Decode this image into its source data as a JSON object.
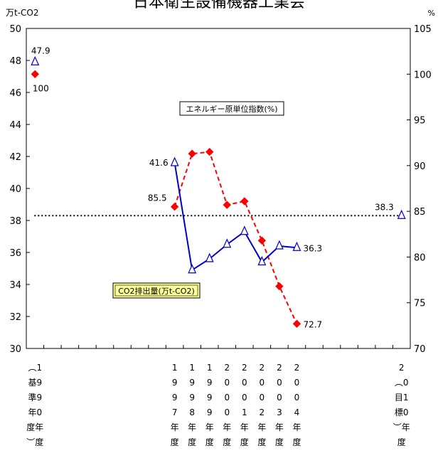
{
  "chart_data": {
    "type": "line",
    "title": "日本衛生設備機器工業会",
    "y_left_unit": "万t-CO2",
    "y_right_unit": "%",
    "y_left_range": [
      30,
      50
    ],
    "y_left_ticks": [
      "30",
      "32",
      "34",
      "36",
      "38",
      "40",
      "42",
      "44",
      "46",
      "48",
      "50"
    ],
    "y_right_range": [
      70,
      105
    ],
    "y_right_ticks": [
      "70",
      "75",
      "80",
      "85",
      "90",
      "95",
      "100",
      "105"
    ],
    "x_labels": [
      {
        "slot": 0,
        "lines": [
          "︵1",
          "基9",
          "準9",
          "年0",
          "度年",
          "︶度"
        ]
      },
      {
        "slot": 8,
        "lines": [
          "1",
          "9",
          "9",
          "7",
          "年",
          "度"
        ]
      },
      {
        "slot": 9,
        "lines": [
          "1",
          "9",
          "9",
          "8",
          "年",
          "度"
        ]
      },
      {
        "slot": 10,
        "lines": [
          "1",
          "9",
          "9",
          "9",
          "年",
          "度"
        ]
      },
      {
        "slot": 11,
        "lines": [
          "2",
          "0",
          "0",
          "0",
          "年",
          "度"
        ]
      },
      {
        "slot": 12,
        "lines": [
          "2",
          "0",
          "0",
          "1",
          "年",
          "度"
        ]
      },
      {
        "slot": 13,
        "lines": [
          "2",
          "0",
          "0",
          "2",
          "年",
          "度"
        ]
      },
      {
        "slot": 14,
        "lines": [
          "2",
          "0",
          "0",
          "3",
          "年",
          "度"
        ]
      },
      {
        "slot": 15,
        "lines": [
          "2",
          "0",
          "0",
          "4",
          "年",
          "度"
        ]
      },
      {
        "slot": 21,
        "lines": [
          "2",
          "︵0",
          "目1",
          "標0",
          "︶年",
          "度"
        ]
      }
    ],
    "slot_count": 22,
    "series": [
      {
        "name": "CO2排出量(万t-CO2)",
        "axis": "left",
        "color": "#0000cc",
        "points": [
          {
            "slot": 0,
            "value": 47.9
          },
          {
            "slot": 8,
            "value": 41.6
          },
          {
            "slot": 9,
            "value": 34.9
          },
          {
            "slot": 10,
            "value": 35.6
          },
          {
            "slot": 11,
            "value": 36.5
          },
          {
            "slot": 12,
            "value": 37.3
          },
          {
            "slot": 13,
            "value": 35.4
          },
          {
            "slot": 14,
            "value": 36.4
          },
          {
            "slot": 15,
            "value": 36.3
          }
        ],
        "connected_from_slot": 8
      },
      {
        "name": "エネルギー原単位指数(%)",
        "axis": "right",
        "color": "#ff0000",
        "points": [
          {
            "slot": 0,
            "value": 100
          },
          {
            "slot": 8,
            "value": 85.5
          },
          {
            "slot": 9,
            "value": 91.3
          },
          {
            "slot": 10,
            "value": 91.5
          },
          {
            "slot": 11,
            "value": 85.7
          },
          {
            "slot": 12,
            "value": 86.1
          },
          {
            "slot": 13,
            "value": 81.8
          },
          {
            "slot": 14,
            "value": 76.8
          },
          {
            "slot": 15,
            "value": 72.7
          }
        ],
        "connected_from_slot": 8
      }
    ],
    "target": {
      "slot": 21,
      "value": 38.3,
      "axis": "left",
      "style": "dotted"
    },
    "data_labels": [
      {
        "text": "47.9",
        "series": 0,
        "slot": 0,
        "pos": "above"
      },
      {
        "text": "100",
        "series": 1,
        "slot": 0,
        "pos": "below"
      },
      {
        "text": "41.6",
        "series": 0,
        "slot": 8,
        "pos": "left"
      },
      {
        "text": "85.5",
        "series": 1,
        "slot": 8,
        "pos": "left-above"
      },
      {
        "text": "36.3",
        "series": 0,
        "slot": 15,
        "pos": "right"
      },
      {
        "text": "72.7",
        "series": 1,
        "slot": 15,
        "pos": "right"
      },
      {
        "text": "38.3",
        "series": "target",
        "slot": 21,
        "pos": "left-above"
      }
    ],
    "annotations": [
      {
        "text": "エネルギー原単位指数(%)",
        "style": "box-white"
      },
      {
        "text": "CO2排出量(万t-CO2)",
        "style": "box-yellow"
      }
    ]
  }
}
